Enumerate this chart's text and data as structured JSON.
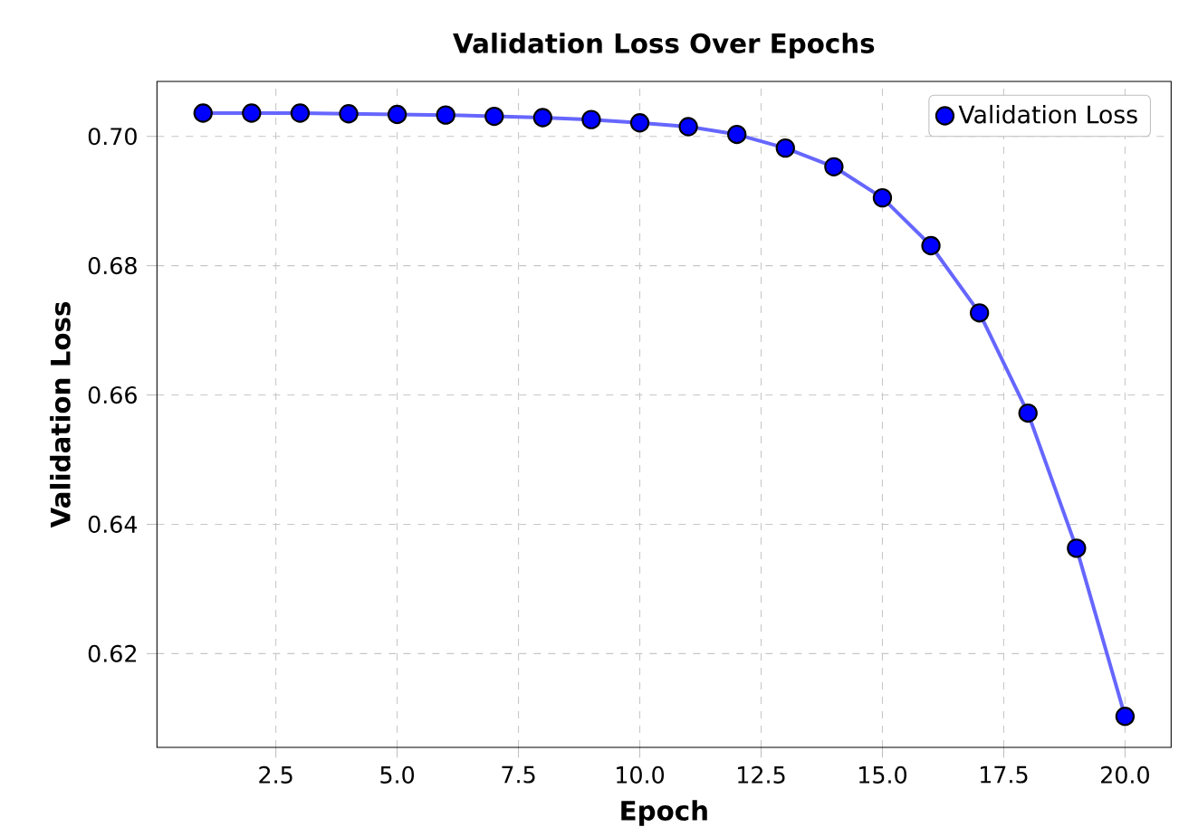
{
  "chart_data": {
    "type": "line",
    "title": "Validation Loss Over Epochs",
    "xlabel": "Epoch",
    "ylabel": "Validation Loss",
    "x": [
      1,
      2,
      3,
      4,
      5,
      6,
      7,
      8,
      9,
      10,
      11,
      12,
      13,
      14,
      15,
      16,
      17,
      18,
      19,
      20
    ],
    "series": [
      {
        "name": "Validation Loss",
        "color": "#0000ff",
        "values": [
          0.7036,
          0.7036,
          0.7036,
          0.7035,
          0.7034,
          0.7033,
          0.7031,
          0.7029,
          0.7026,
          0.7021,
          0.7015,
          0.7003,
          0.6982,
          0.6953,
          0.6905,
          0.6831,
          0.6727,
          0.6572,
          0.6363,
          0.6103
        ]
      }
    ],
    "xlim": [
      0.05,
      20.95
    ],
    "ylim": [
      0.6055,
      0.7085
    ],
    "xticks": [
      {
        "value": 2.5,
        "label": "2.5"
      },
      {
        "value": 5,
        "label": "5.0"
      },
      {
        "value": 7.5,
        "label": "7.5"
      },
      {
        "value": 10,
        "label": "10.0"
      },
      {
        "value": 12.5,
        "label": "12.5"
      },
      {
        "value": 15,
        "label": "15.0"
      },
      {
        "value": 17.5,
        "label": "17.5"
      },
      {
        "value": 20,
        "label": "20.0"
      }
    ],
    "yticks": [
      {
        "value": 0.62,
        "label": "0.62"
      },
      {
        "value": 0.64,
        "label": "0.64"
      },
      {
        "value": 0.66,
        "label": "0.66"
      },
      {
        "value": 0.68,
        "label": "0.68"
      },
      {
        "value": 0.7,
        "label": "0.70"
      }
    ],
    "grid": true,
    "legend": "top right",
    "marker": "circle",
    "line_style": "solid"
  }
}
